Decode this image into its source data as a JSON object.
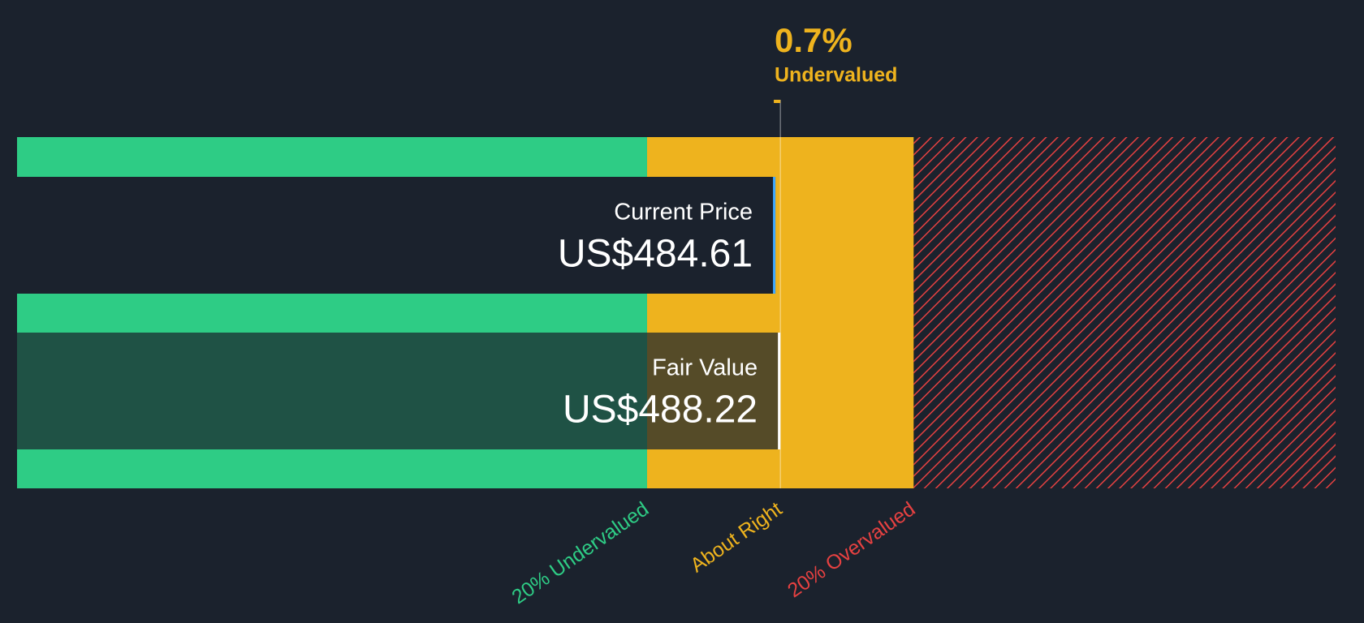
{
  "chart_data": {
    "type": "valuation",
    "categories": [
      "Current Price",
      "Fair Value"
    ],
    "values": [
      484.61,
      488.22
    ],
    "value_labels": [
      "US$484.61",
      "US$488.22"
    ],
    "annotation": {
      "value": 0.7,
      "label": "0.7%",
      "text": "Undervalued"
    },
    "zones": [
      {
        "name": "20% Undervalued",
        "color": "#2ecc85"
      },
      {
        "name": "About Right",
        "color": "#eeb31e"
      },
      {
        "name": "20% Overvalued",
        "color": "#e64141"
      }
    ],
    "zone_bounds": [
      390.58,
      585.86
    ],
    "xlim": [
      -71,
      895
    ]
  }
}
